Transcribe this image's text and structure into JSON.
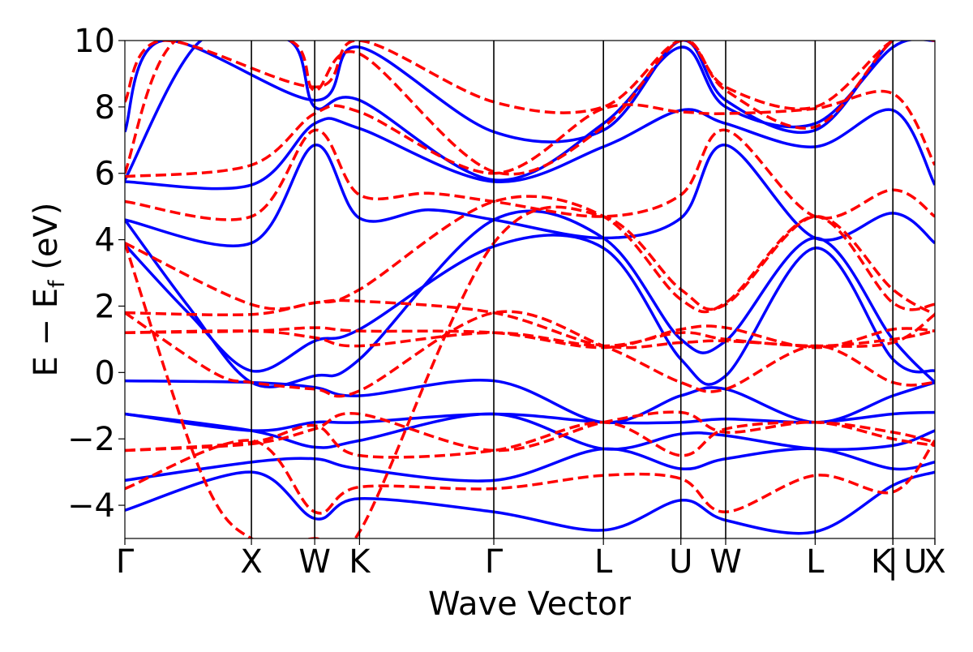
{
  "chart_data": {
    "type": "line",
    "xlabel": "Wave Vector",
    "ylabel": "E − E",
    "ylabel_sub": "f",
    "ylabel_unit": " (eV)",
    "ylim": [
      -5,
      10
    ],
    "yticks": [
      -4,
      -2,
      0,
      2,
      4,
      6,
      8,
      10
    ],
    "ytick_labels": [
      "−4",
      "−2",
      "0",
      "2",
      "4",
      "6",
      "8",
      "10"
    ],
    "grid": false,
    "legend": "none",
    "kpoints": [
      {
        "label": "Γ",
        "x": 0.0
      },
      {
        "label": "X",
        "x": 1.0
      },
      {
        "label": "W",
        "x": 1.5
      },
      {
        "label": "K",
        "x": 1.854
      },
      {
        "label": "Γ",
        "x": 2.915
      },
      {
        "label": "L",
        "x": 3.781
      },
      {
        "label": "U",
        "x": 4.393
      },
      {
        "label": "W",
        "x": 4.747
      },
      {
        "label": "L",
        "x": 5.454
      },
      {
        "label": "K",
        "x": 6.068
      },
      {
        "label": "|",
        "x": 6.068
      },
      {
        "label": "U",
        "x": 6.4
      },
      {
        "label": "X",
        "x": 6.4
      }
    ],
    "colors": {
      "solid": "#0000ff",
      "dashed": "#ff0000"
    },
    "series": [
      {
        "style": "solid",
        "color": "#0000ff",
        "points": [
          [
            0,
            -4.15
          ],
          [
            1,
            -3.0
          ],
          [
            1.5,
            -4.4
          ],
          [
            1.854,
            -3.8
          ],
          [
            2.915,
            -4.2
          ],
          [
            3.781,
            -4.75
          ],
          [
            4.393,
            -3.85
          ],
          [
            4.747,
            -4.45
          ],
          [
            5.454,
            -4.8
          ],
          [
            6.068,
            -3.4
          ],
          [
            6.4,
            -3.0
          ]
        ]
      },
      {
        "style": "solid",
        "color": "#0000ff",
        "points": [
          [
            0,
            -3.25
          ],
          [
            1,
            -2.7
          ],
          [
            1.5,
            -2.6
          ],
          [
            1.854,
            -2.9
          ],
          [
            2.915,
            -3.25
          ],
          [
            3.781,
            -2.3
          ],
          [
            4.393,
            -2.9
          ],
          [
            4.747,
            -2.6
          ],
          [
            5.454,
            -2.3
          ],
          [
            6.068,
            -2.9
          ],
          [
            6.4,
            -2.7
          ]
        ]
      },
      {
        "style": "solid",
        "color": "#0000ff",
        "points": [
          [
            0,
            -1.25
          ],
          [
            1,
            -1.75
          ],
          [
            1.5,
            -2.25
          ],
          [
            1.854,
            -2.05
          ],
          [
            2.915,
            -1.25
          ],
          [
            3.781,
            -2.3
          ],
          [
            4.393,
            -1.85
          ],
          [
            4.747,
            -1.9
          ],
          [
            5.454,
            -2.3
          ],
          [
            6.068,
            -2.2
          ],
          [
            6.4,
            -1.75
          ]
        ]
      },
      {
        "style": "solid",
        "color": "#0000ff",
        "points": [
          [
            0,
            -1.25
          ],
          [
            1,
            -1.75
          ],
          [
            1.5,
            -1.5
          ],
          [
            1.854,
            -1.5
          ],
          [
            2.915,
            -1.25
          ],
          [
            3.781,
            -1.5
          ],
          [
            4.393,
            -1.5
          ],
          [
            4.747,
            -1.4
          ],
          [
            5.454,
            -1.5
          ],
          [
            6.068,
            -1.25
          ],
          [
            6.4,
            -1.2
          ]
        ]
      },
      {
        "style": "solid",
        "color": "#0000ff",
        "points": [
          [
            0,
            -0.25
          ],
          [
            1,
            -0.3
          ],
          [
            1.5,
            -0.45
          ],
          [
            1.854,
            -0.7
          ],
          [
            2.915,
            -0.25
          ],
          [
            3.781,
            -1.5
          ],
          [
            4.393,
            -0.7
          ],
          [
            4.747,
            -0.5
          ],
          [
            5.454,
            -1.5
          ],
          [
            6.068,
            -0.7
          ],
          [
            6.4,
            -0.3
          ]
        ]
      },
      {
        "style": "solid",
        "color": "#0000ff",
        "points": [
          [
            0,
            3.85
          ],
          [
            0.5,
            1.8
          ],
          [
            1,
            0.05
          ],
          [
            1.5,
            0.95
          ],
          [
            1.854,
            1.3
          ],
          [
            2.915,
            3.8
          ],
          [
            3.781,
            3.75
          ],
          [
            4.393,
            0.4
          ],
          [
            4.747,
            -0.1
          ],
          [
            5.454,
            3.75
          ],
          [
            6.068,
            0.4
          ],
          [
            6.4,
            0.05
          ]
        ]
      },
      {
        "style": "solid",
        "color": "#0000ff",
        "points": [
          [
            0,
            4.6
          ],
          [
            0.5,
            2.0
          ],
          [
            1,
            -0.3
          ],
          [
            1.5,
            -0.1
          ],
          [
            1.854,
            0.4
          ],
          [
            2.915,
            4.6
          ],
          [
            3.781,
            4.05
          ],
          [
            4.393,
            1.0
          ],
          [
            4.747,
            0.95
          ],
          [
            5.454,
            4.05
          ],
          [
            6.068,
            1.0
          ],
          [
            6.4,
            -0.3
          ]
        ]
      },
      {
        "style": "solid",
        "color": "#0000ff",
        "points": [
          [
            0,
            4.6
          ],
          [
            1,
            3.9
          ],
          [
            1.5,
            6.85
          ],
          [
            1.854,
            4.65
          ],
          [
            2.4,
            4.9
          ],
          [
            2.915,
            4.6
          ],
          [
            3.781,
            4.05
          ],
          [
            4.393,
            4.65
          ],
          [
            4.747,
            6.85
          ],
          [
            5.454,
            4.05
          ],
          [
            6.068,
            4.8
          ],
          [
            6.4,
            3.9
          ]
        ]
      },
      {
        "style": "solid",
        "color": "#0000ff",
        "points": [
          [
            0,
            5.75
          ],
          [
            1,
            5.65
          ],
          [
            1.5,
            7.5
          ],
          [
            1.854,
            7.35
          ],
          [
            2.915,
            5.75
          ],
          [
            3.781,
            6.8
          ],
          [
            4.393,
            7.9
          ],
          [
            4.747,
            7.5
          ],
          [
            5.454,
            6.8
          ],
          [
            6.068,
            7.9
          ],
          [
            6.4,
            5.65
          ]
        ]
      },
      {
        "style": "solid",
        "color": "#0000ff",
        "points": [
          [
            0,
            5.8
          ],
          [
            0.6,
            10
          ],
          [
            1.3,
            10
          ],
          [
            1.5,
            8.0
          ],
          [
            1.854,
            8.2
          ],
          [
            2.915,
            5.8
          ],
          [
            3.781,
            7.5
          ],
          [
            4.393,
            9.8
          ],
          [
            4.747,
            8.0
          ],
          [
            5.454,
            7.5
          ],
          [
            6.068,
            9.8
          ],
          [
            6.4,
            10
          ]
        ]
      },
      {
        "style": "solid",
        "color": "#0000ff",
        "points": [
          [
            0,
            7.25
          ],
          [
            0.3,
            10
          ],
          [
            1.5,
            8.2
          ],
          [
            1.854,
            9.8
          ],
          [
            2.915,
            7.25
          ],
          [
            3.781,
            7.3
          ],
          [
            4.393,
            10
          ],
          [
            4.747,
            8.2
          ],
          [
            5.454,
            7.3
          ],
          [
            6.068,
            10
          ],
          [
            6.4,
            10
          ]
        ]
      },
      {
        "style": "dashed",
        "color": "#ff0000",
        "points": [
          [
            0,
            -3.5
          ],
          [
            1,
            -2.05
          ],
          [
            1.5,
            -4.2
          ],
          [
            1.854,
            -3.45
          ],
          [
            2.915,
            -3.5
          ],
          [
            3.781,
            -3.1
          ],
          [
            4.393,
            -3.2
          ],
          [
            4.747,
            -4.2
          ],
          [
            5.454,
            -3.1
          ],
          [
            6.068,
            -3.6
          ],
          [
            6.4,
            -2.05
          ]
        ]
      },
      {
        "style": "dashed",
        "color": "#ff0000",
        "points": [
          [
            0,
            -2.35
          ],
          [
            1,
            -2.1
          ],
          [
            1.5,
            -1.6
          ],
          [
            1.854,
            -2.5
          ],
          [
            2.915,
            -2.35
          ],
          [
            3.781,
            -1.5
          ],
          [
            4.393,
            -2.5
          ],
          [
            4.747,
            -1.7
          ],
          [
            5.454,
            -1.5
          ],
          [
            6.068,
            -1.8
          ],
          [
            6.4,
            -2.1
          ]
        ]
      },
      {
        "style": "dashed",
        "color": "#ff0000",
        "points": [
          [
            0,
            -2.35
          ],
          [
            1,
            -2.15
          ],
          [
            1.5,
            -1.7
          ],
          [
            1.854,
            -1.25
          ],
          [
            2.915,
            -2.35
          ],
          [
            3.781,
            -1.5
          ],
          [
            4.393,
            -1.2
          ],
          [
            4.747,
            -1.8
          ],
          [
            5.454,
            -1.5
          ],
          [
            6.068,
            -2.0
          ],
          [
            6.4,
            -2.2
          ]
        ]
      },
      {
        "style": "dashed",
        "color": "#ff0000",
        "points": [
          [
            0,
            1.2
          ],
          [
            1,
            1.25
          ],
          [
            1.5,
            1.05
          ],
          [
            1.854,
            0.8
          ],
          [
            2.915,
            1.2
          ],
          [
            3.781,
            0.8
          ],
          [
            4.393,
            1.2
          ],
          [
            4.747,
            1.0
          ],
          [
            5.454,
            0.8
          ],
          [
            6.068,
            1.0
          ],
          [
            6.4,
            1.25
          ]
        ]
      },
      {
        "style": "dashed",
        "color": "#ff0000",
        "points": [
          [
            0,
            1.2
          ],
          [
            1,
            1.25
          ],
          [
            1.5,
            1.35
          ],
          [
            1.854,
            1.25
          ],
          [
            2.915,
            1.2
          ],
          [
            3.781,
            0.75
          ],
          [
            4.393,
            1.3
          ],
          [
            4.747,
            1.35
          ],
          [
            5.454,
            0.75
          ],
          [
            6.068,
            1.3
          ],
          [
            6.4,
            1.25
          ]
        ]
      },
      {
        "style": "dashed",
        "color": "#ff0000",
        "points": [
          [
            0,
            1.8
          ],
          [
            1,
            1.75
          ],
          [
            1.5,
            2.1
          ],
          [
            1.854,
            2.15
          ],
          [
            2.915,
            1.8
          ],
          [
            3.781,
            0.8
          ],
          [
            4.393,
            0.9
          ],
          [
            4.747,
            0.95
          ],
          [
            5.454,
            0.8
          ],
          [
            6.068,
            0.9
          ],
          [
            6.4,
            1.75
          ]
        ]
      },
      {
        "style": "dashed",
        "color": "#ff0000",
        "points": [
          [
            0,
            1.8
          ],
          [
            0.7,
            0
          ],
          [
            1,
            -0.3
          ],
          [
            1.5,
            -0.5
          ],
          [
            1.854,
            -0.55
          ],
          [
            2.915,
            1.8
          ],
          [
            3.781,
            0.8
          ],
          [
            4.393,
            -0.3
          ],
          [
            4.747,
            -0.5
          ],
          [
            5.454,
            0.8
          ],
          [
            6.068,
            -0.3
          ],
          [
            6.4,
            -0.3
          ]
        ]
      },
      {
        "style": "dashed",
        "color": "#ff0000",
        "points": [
          [
            0,
            3.9
          ],
          [
            1,
            2.05
          ],
          [
            1.5,
            2.1
          ],
          [
            1.854,
            2.5
          ],
          [
            2.915,
            5.15
          ],
          [
            3.781,
            4.7
          ],
          [
            4.393,
            2.2
          ],
          [
            4.747,
            2.1
          ],
          [
            5.454,
            4.7
          ],
          [
            6.068,
            2.1
          ],
          [
            6.4,
            2.05
          ]
        ]
      },
      {
        "style": "dashed",
        "color": "#ff0000",
        "points": [
          [
            0,
            3.9
          ],
          [
            0.6,
            -3.0
          ],
          [
            1,
            -5
          ],
          [
            1.5,
            -5
          ],
          [
            1.854,
            -4.8
          ],
          [
            2.915,
            3.9
          ],
          [
            3.781,
            4.7
          ],
          [
            4.393,
            2.5
          ],
          [
            4.747,
            2.05
          ],
          [
            5.454,
            4.7
          ],
          [
            6.068,
            2.5
          ],
          [
            6.4,
            1.75
          ]
        ]
      },
      {
        "style": "dashed",
        "color": "#ff0000",
        "points": [
          [
            0,
            5.15
          ],
          [
            1,
            4.7
          ],
          [
            1.5,
            7.3
          ],
          [
            1.854,
            5.35
          ],
          [
            2.4,
            5.4
          ],
          [
            2.915,
            5.15
          ],
          [
            3.781,
            4.7
          ],
          [
            4.393,
            5.35
          ],
          [
            4.747,
            7.3
          ],
          [
            5.454,
            4.7
          ],
          [
            6.068,
            5.5
          ],
          [
            6.4,
            4.7
          ]
        ]
      },
      {
        "style": "dashed",
        "color": "#ff0000",
        "points": [
          [
            0,
            5.9
          ],
          [
            1,
            6.25
          ],
          [
            1.5,
            7.8
          ],
          [
            1.854,
            7.85
          ],
          [
            2.915,
            6.0
          ],
          [
            3.781,
            7.95
          ],
          [
            4.393,
            7.85
          ],
          [
            4.747,
            7.8
          ],
          [
            5.454,
            7.95
          ],
          [
            6.068,
            8.4
          ],
          [
            6.4,
            6.25
          ]
        ]
      },
      {
        "style": "dashed",
        "color": "#ff0000",
        "points": [
          [
            0,
            6.0
          ],
          [
            0.4,
            10
          ],
          [
            1.3,
            10
          ],
          [
            1.5,
            8.5
          ],
          [
            1.854,
            9.6
          ],
          [
            2.915,
            6.05
          ],
          [
            3.781,
            7.4
          ],
          [
            4.393,
            10
          ],
          [
            4.747,
            8.5
          ],
          [
            5.454,
            7.4
          ],
          [
            6.068,
            10
          ],
          [
            6.4,
            10
          ]
        ]
      },
      {
        "style": "dashed",
        "color": "#ff0000",
        "points": [
          [
            0,
            8.15
          ],
          [
            0.3,
            10
          ],
          [
            1.5,
            8.6
          ],
          [
            1.854,
            10
          ],
          [
            2.915,
            8.15
          ],
          [
            3.781,
            8.0
          ],
          [
            4.393,
            10
          ],
          [
            4.747,
            8.6
          ],
          [
            5.454,
            8.0
          ],
          [
            6.068,
            10
          ],
          [
            6.4,
            10
          ]
        ]
      }
    ]
  }
}
